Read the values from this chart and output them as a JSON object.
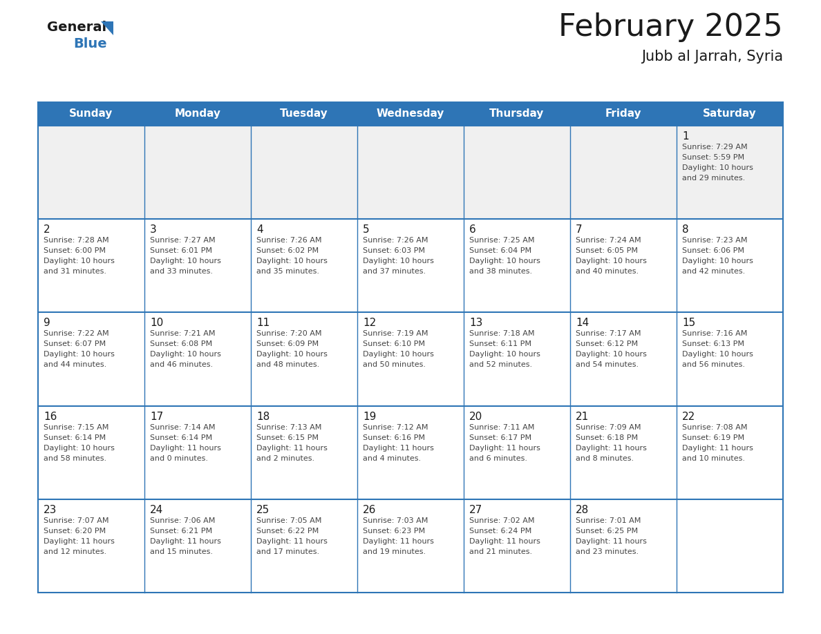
{
  "title": "February 2025",
  "subtitle": "Jubb al Jarrah, Syria",
  "header_color": "#2E75B6",
  "header_text_color": "#FFFFFF",
  "days_of_week": [
    "Sunday",
    "Monday",
    "Tuesday",
    "Wednesday",
    "Thursday",
    "Friday",
    "Saturday"
  ],
  "bg_color": "#FFFFFF",
  "cell_bg_light": "#F0F0F0",
  "border_color": "#2E75B6",
  "text_color": "#333333",
  "day_number_color": "#1a1a1a",
  "logo_general_color": "#1a1a1a",
  "logo_blue_color": "#2E75B6",
  "calendar": [
    [
      null,
      null,
      null,
      null,
      null,
      null,
      {
        "day": 1,
        "sunrise": "7:29 AM",
        "sunset": "5:59 PM",
        "daylight": "10 hours and 29 minutes."
      }
    ],
    [
      {
        "day": 2,
        "sunrise": "7:28 AM",
        "sunset": "6:00 PM",
        "daylight": "10 hours and 31 minutes."
      },
      {
        "day": 3,
        "sunrise": "7:27 AM",
        "sunset": "6:01 PM",
        "daylight": "10 hours and 33 minutes."
      },
      {
        "day": 4,
        "sunrise": "7:26 AM",
        "sunset": "6:02 PM",
        "daylight": "10 hours and 35 minutes."
      },
      {
        "day": 5,
        "sunrise": "7:26 AM",
        "sunset": "6:03 PM",
        "daylight": "10 hours and 37 minutes."
      },
      {
        "day": 6,
        "sunrise": "7:25 AM",
        "sunset": "6:04 PM",
        "daylight": "10 hours and 38 minutes."
      },
      {
        "day": 7,
        "sunrise": "7:24 AM",
        "sunset": "6:05 PM",
        "daylight": "10 hours and 40 minutes."
      },
      {
        "day": 8,
        "sunrise": "7:23 AM",
        "sunset": "6:06 PM",
        "daylight": "10 hours and 42 minutes."
      }
    ],
    [
      {
        "day": 9,
        "sunrise": "7:22 AM",
        "sunset": "6:07 PM",
        "daylight": "10 hours and 44 minutes."
      },
      {
        "day": 10,
        "sunrise": "7:21 AM",
        "sunset": "6:08 PM",
        "daylight": "10 hours and 46 minutes."
      },
      {
        "day": 11,
        "sunrise": "7:20 AM",
        "sunset": "6:09 PM",
        "daylight": "10 hours and 48 minutes."
      },
      {
        "day": 12,
        "sunrise": "7:19 AM",
        "sunset": "6:10 PM",
        "daylight": "10 hours and 50 minutes."
      },
      {
        "day": 13,
        "sunrise": "7:18 AM",
        "sunset": "6:11 PM",
        "daylight": "10 hours and 52 minutes."
      },
      {
        "day": 14,
        "sunrise": "7:17 AM",
        "sunset": "6:12 PM",
        "daylight": "10 hours and 54 minutes."
      },
      {
        "day": 15,
        "sunrise": "7:16 AM",
        "sunset": "6:13 PM",
        "daylight": "10 hours and 56 minutes."
      }
    ],
    [
      {
        "day": 16,
        "sunrise": "7:15 AM",
        "sunset": "6:14 PM",
        "daylight": "10 hours and 58 minutes."
      },
      {
        "day": 17,
        "sunrise": "7:14 AM",
        "sunset": "6:14 PM",
        "daylight": "11 hours and 0 minutes."
      },
      {
        "day": 18,
        "sunrise": "7:13 AM",
        "sunset": "6:15 PM",
        "daylight": "11 hours and 2 minutes."
      },
      {
        "day": 19,
        "sunrise": "7:12 AM",
        "sunset": "6:16 PM",
        "daylight": "11 hours and 4 minutes."
      },
      {
        "day": 20,
        "sunrise": "7:11 AM",
        "sunset": "6:17 PM",
        "daylight": "11 hours and 6 minutes."
      },
      {
        "day": 21,
        "sunrise": "7:09 AM",
        "sunset": "6:18 PM",
        "daylight": "11 hours and 8 minutes."
      },
      {
        "day": 22,
        "sunrise": "7:08 AM",
        "sunset": "6:19 PM",
        "daylight": "11 hours and 10 minutes."
      }
    ],
    [
      {
        "day": 23,
        "sunrise": "7:07 AM",
        "sunset": "6:20 PM",
        "daylight": "11 hours and 12 minutes."
      },
      {
        "day": 24,
        "sunrise": "7:06 AM",
        "sunset": "6:21 PM",
        "daylight": "11 hours and 15 minutes."
      },
      {
        "day": 25,
        "sunrise": "7:05 AM",
        "sunset": "6:22 PM",
        "daylight": "11 hours and 17 minutes."
      },
      {
        "day": 26,
        "sunrise": "7:03 AM",
        "sunset": "6:23 PM",
        "daylight": "11 hours and 19 minutes."
      },
      {
        "day": 27,
        "sunrise": "7:02 AM",
        "sunset": "6:24 PM",
        "daylight": "11 hours and 21 minutes."
      },
      {
        "day": 28,
        "sunrise": "7:01 AM",
        "sunset": "6:25 PM",
        "daylight": "11 hours and 23 minutes."
      },
      null
    ]
  ]
}
